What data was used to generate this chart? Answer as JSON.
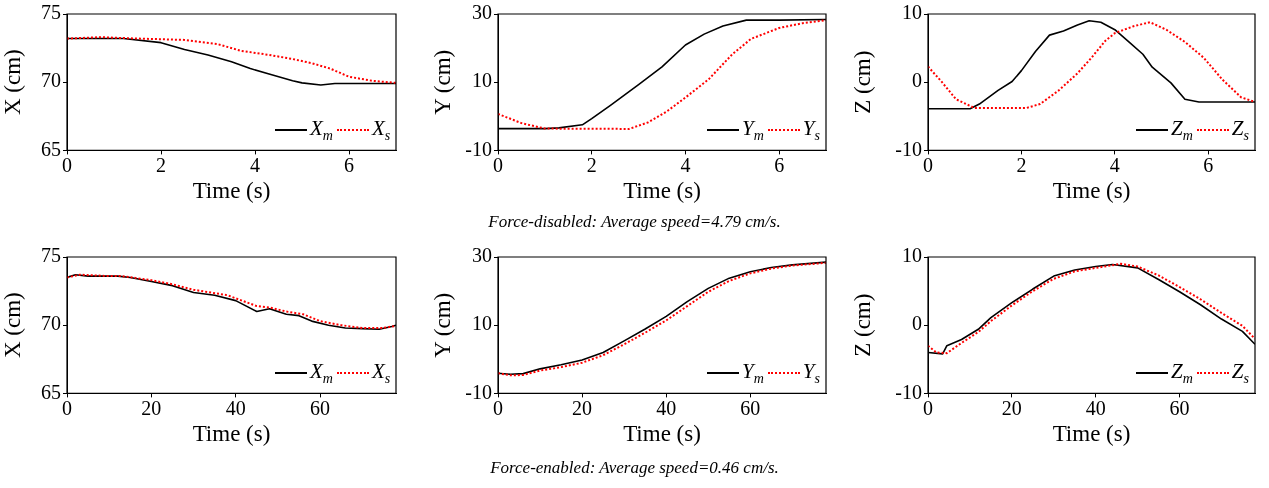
{
  "chart_data": [
    {
      "type": "line",
      "xlabel": "Time (s)",
      "ylabel": "X (cm)",
      "xlim": [
        0,
        7
      ],
      "xticks": [
        0,
        2,
        4,
        6
      ],
      "ylim": [
        65,
        75
      ],
      "yticks": [
        65,
        70,
        75
      ],
      "legend": "bottom right",
      "grid": false,
      "marker": "none",
      "series": [
        {
          "name": "X$_{m}$",
          "color": "#000000",
          "line_style": "solid",
          "x": [
            0,
            1.2,
            2,
            2.5,
            3,
            3.5,
            3.9,
            4.3,
            4.8,
            5,
            5.4,
            5.7,
            6,
            7
          ],
          "values": [
            73.2,
            73.2,
            72.9,
            72.4,
            72,
            71.5,
            71,
            70.6,
            70.1,
            69.95,
            69.8,
            69.9,
            69.9,
            69.9
          ]
        },
        {
          "name": "X$_{s}$",
          "color": "#ff0000",
          "line_style": "dotted",
          "x": [
            0,
            0.7,
            1.5,
            2.5,
            3.2,
            3.7,
            4.3,
            4.8,
            5.2,
            5.6,
            6,
            6.5,
            7
          ],
          "values": [
            73.2,
            73.3,
            73.2,
            73.1,
            72.8,
            72.3,
            72,
            71.7,
            71.4,
            71,
            70.4,
            70.1,
            69.95
          ]
        }
      ]
    },
    {
      "type": "line",
      "xlabel": "Time (s)",
      "ylabel": "Y (cm)",
      "xlim": [
        0,
        7
      ],
      "xticks": [
        0,
        2,
        4,
        6
      ],
      "ylim": [
        -10,
        30
      ],
      "yticks": [
        -10,
        10,
        30
      ],
      "legend": "bottom right",
      "grid": false,
      "marker": "none",
      "annotations": [
        "Force-disabled: Average speed=4.79 cm/s."
      ],
      "series": [
        {
          "name": "Y$_{m}$",
          "color": "#000000",
          "line_style": "solid",
          "x": [
            0,
            1,
            1.3,
            1.8,
            2,
            2.4,
            3,
            3.5,
            4,
            4.4,
            4.8,
            5.3,
            6,
            7
          ],
          "values": [
            -3.6,
            -3.6,
            -3.4,
            -2.5,
            -0.7,
            3.2,
            9.3,
            14.5,
            20.9,
            24.1,
            26.5,
            28.2,
            28.2,
            28.4
          ]
        },
        {
          "name": "Y$_{s}$",
          "color": "#ff0000",
          "line_style": "dotted",
          "x": [
            0,
            0.5,
            1,
            2.8,
            3.2,
            3.6,
            4,
            4.5,
            5,
            5.4,
            6,
            6.5,
            7
          ],
          "values": [
            0.7,
            -2,
            -3.6,
            -3.7,
            -1.8,
            1.4,
            5.5,
            10.9,
            18.2,
            22.7,
            25.9,
            27.3,
            28.2
          ]
        }
      ]
    },
    {
      "type": "line",
      "xlabel": "Time (s)",
      "ylabel": "Z (cm)",
      "xlim": [
        0,
        7
      ],
      "xticks": [
        0,
        2,
        4,
        6
      ],
      "ylim": [
        -10,
        10
      ],
      "yticks": [
        -10,
        0,
        10
      ],
      "legend": "bottom right",
      "grid": false,
      "marker": "none",
      "series": [
        {
          "name": "Z$_{m}$",
          "color": "#000000",
          "line_style": "solid",
          "x": [
            0,
            0.9,
            1.1,
            1.5,
            1.8,
            2,
            2.3,
            2.6,
            2.9,
            3.2,
            3.45,
            3.7,
            4,
            4.3,
            4.6,
            4.8,
            5.2,
            5.5,
            5.8,
            7
          ],
          "values": [
            -3.9,
            -3.9,
            -3.2,
            -1.2,
            0.1,
            1.7,
            4.5,
            6.9,
            7.5,
            8.4,
            9,
            8.8,
            7.7,
            5.9,
            4.1,
            2.2,
            -0.1,
            -2.5,
            -2.9,
            -2.9
          ]
        },
        {
          "name": "Z$_{s}$",
          "color": "#ff0000",
          "line_style": "dotted",
          "x": [
            0,
            0.3,
            0.6,
            1,
            2.1,
            2.4,
            2.8,
            3.2,
            3.5,
            3.8,
            4,
            4.4,
            4.75,
            5.1,
            5.5,
            5.9,
            6.3,
            6.7,
            7
          ],
          "values": [
            2.3,
            0,
            -2.5,
            -3.8,
            -3.8,
            -3.2,
            -1.2,
            1.3,
            3.6,
            6.1,
            7.2,
            8.2,
            8.8,
            7.7,
            5.9,
            3.6,
            0.4,
            -2.2,
            -2.9
          ]
        }
      ]
    },
    {
      "type": "line",
      "xlabel": "Time (s)",
      "ylabel": "X (cm)",
      "xlim": [
        0,
        78
      ],
      "xticks": [
        0,
        20,
        40,
        60
      ],
      "ylim": [
        65,
        75
      ],
      "yticks": [
        65,
        70,
        75
      ],
      "legend": "bottom right",
      "grid": false,
      "marker": "none",
      "series": [
        {
          "name": "X$_{m}$",
          "color": "#000000",
          "line_style": "solid",
          "x": [
            0,
            2,
            5,
            12,
            15,
            20,
            25,
            30,
            35,
            40,
            45,
            48,
            52,
            55,
            58,
            62,
            66,
            70,
            74,
            77,
            78
          ],
          "values": [
            73.5,
            73.7,
            73.6,
            73.6,
            73.5,
            73.2,
            72.9,
            72.4,
            72.2,
            71.8,
            71,
            71.2,
            70.8,
            70.7,
            70.3,
            70,
            69.8,
            69.75,
            69.7,
            69.9,
            70
          ]
        },
        {
          "name": "X$_{s}$",
          "color": "#ff0000",
          "line_style": "dotted",
          "x": [
            0,
            3,
            10,
            13,
            20,
            25,
            30,
            38,
            45,
            48,
            52,
            56,
            60,
            65,
            70,
            75,
            78
          ],
          "values": [
            73.5,
            73.7,
            73.6,
            73.6,
            73.3,
            73,
            72.6,
            72.2,
            71.4,
            71.3,
            71,
            70.8,
            70.3,
            70,
            69.8,
            69.8,
            69.95
          ]
        }
      ]
    },
    {
      "type": "line",
      "xlabel": "Time (s)",
      "ylabel": "Y (cm)",
      "xlim": [
        0,
        78
      ],
      "xticks": [
        0,
        20,
        40,
        60
      ],
      "ylim": [
        -10,
        30
      ],
      "yticks": [
        -10,
        10,
        30
      ],
      "legend": "bottom right",
      "grid": false,
      "marker": "none",
      "annotations": [
        "Force-enabled: Average speed=0.46 cm/s."
      ],
      "series": [
        {
          "name": "Y$_{m}$",
          "color": "#000000",
          "line_style": "solid",
          "x": [
            0,
            3,
            6,
            10,
            15,
            20,
            25,
            30,
            35,
            40,
            45,
            50,
            55,
            60,
            65,
            70,
            78
          ],
          "values": [
            -4.1,
            -4.4,
            -4.2,
            -2.8,
            -1.6,
            -0.2,
            2,
            5.4,
            8.9,
            12.6,
            16.9,
            20.8,
            23.8,
            25.7,
            26.9,
            27.7,
            28.5
          ]
        },
        {
          "name": "Y$_{s}$",
          "color": "#ff0000",
          "line_style": "dotted",
          "x": [
            0,
            3,
            6,
            10,
            15,
            20,
            25,
            30,
            35,
            40,
            45,
            50,
            55,
            60,
            65,
            70,
            78
          ],
          "values": [
            -4.1,
            -4.7,
            -4.6,
            -3.3,
            -2.3,
            -1,
            1.2,
            4.4,
            7.8,
            11.4,
            15.6,
            19.8,
            23,
            25.2,
            26.6,
            27.5,
            28.3
          ]
        }
      ]
    },
    {
      "type": "line",
      "xlabel": "Time (s)",
      "ylabel": "Z (cm)",
      "xlim": [
        0,
        78
      ],
      "xticks": [
        0,
        20,
        40,
        60
      ],
      "ylim": [
        -10,
        10
      ],
      "yticks": [
        -10,
        0,
        10
      ],
      "legend": "bottom right",
      "grid": false,
      "marker": "none",
      "series": [
        {
          "name": "Z$_{m}$",
          "color": "#000000",
          "line_style": "solid",
          "x": [
            0,
            3.5,
            4.5,
            8,
            12,
            15,
            20,
            25,
            30,
            35,
            40,
            44,
            50,
            55,
            60,
            65,
            70,
            75,
            78
          ],
          "values": [
            -4,
            -4.2,
            -3,
            -2.1,
            -0.6,
            1.1,
            3.3,
            5.3,
            7.2,
            8.1,
            8.6,
            8.9,
            8.4,
            6.7,
            4.9,
            3,
            0.9,
            -0.9,
            -2.8
          ]
        },
        {
          "name": "Z$_{s}$",
          "color": "#ff0000",
          "line_style": "dotted",
          "x": [
            0,
            2,
            4.5,
            8,
            12,
            15,
            20,
            25,
            30,
            35,
            40,
            46,
            50,
            55,
            60,
            65,
            70,
            75,
            78
          ],
          "values": [
            -3,
            -4,
            -4.1,
            -2.6,
            -1,
            0.6,
            2.9,
            5,
            6.8,
            7.9,
            8.4,
            9,
            8.6,
            7.3,
            5.6,
            3.8,
            1.8,
            -0.1,
            -2
          ]
        }
      ]
    }
  ]
}
